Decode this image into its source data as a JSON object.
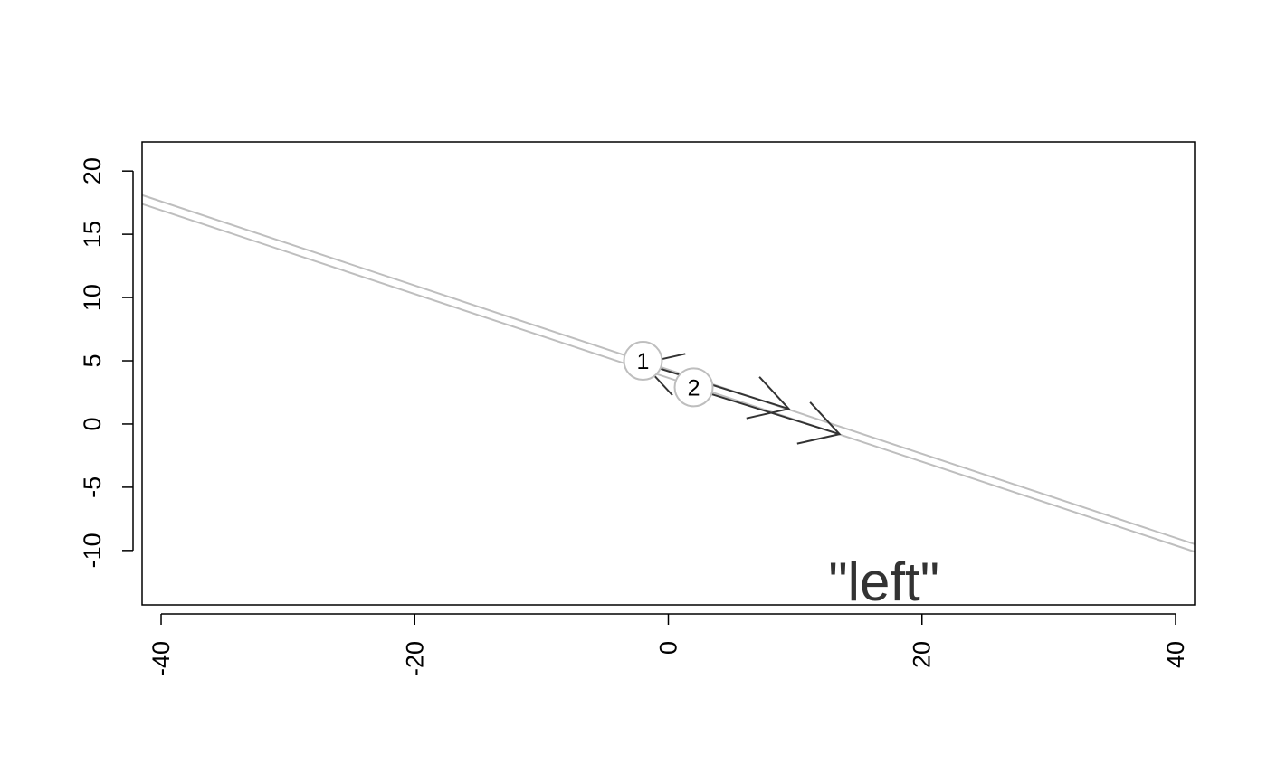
{
  "chart_data": {
    "type": "line",
    "title": "",
    "xlabel": "",
    "ylabel": "",
    "xlim": [
      -41.5,
      41.5
    ],
    "ylim": [
      -14.3,
      22.3
    ],
    "x_ticks": [
      -40,
      -20,
      0,
      20,
      40
    ],
    "y_ticks": [
      -10,
      -5,
      0,
      5,
      10,
      15,
      20
    ],
    "x_tick_labels": [
      "-40",
      "-20",
      "0",
      "20",
      "40"
    ],
    "y_tick_labels": [
      "-10",
      "-5",
      "0",
      "5",
      "10",
      "15",
      "20"
    ],
    "grid": false,
    "colors": {
      "line": "#bebebe",
      "arrow": "#333333",
      "text": "#333333",
      "frame": "#000000"
    },
    "series": [
      {
        "x": [
          -41.5,
          41.5
        ],
        "y": [
          18.1,
          -9.5
        ]
      },
      {
        "x": [
          -41.5,
          41.5
        ],
        "y": [
          17.4,
          -10.1
        ]
      }
    ],
    "arrows": [
      {
        "tail": [
          -2,
          4.8
        ],
        "head": [
          9.5,
          1.2
        ]
      },
      {
        "tail": [
          2,
          2.8
        ],
        "head": [
          13.5,
          -0.8
        ]
      }
    ],
    "points": [
      {
        "label": "1",
        "x": -2,
        "y": 5.0
      },
      {
        "label": "2",
        "x": 2,
        "y": 2.9
      }
    ],
    "annotations": [
      {
        "text": "\"left\"",
        "x": 17,
        "y": -12.5
      }
    ]
  }
}
